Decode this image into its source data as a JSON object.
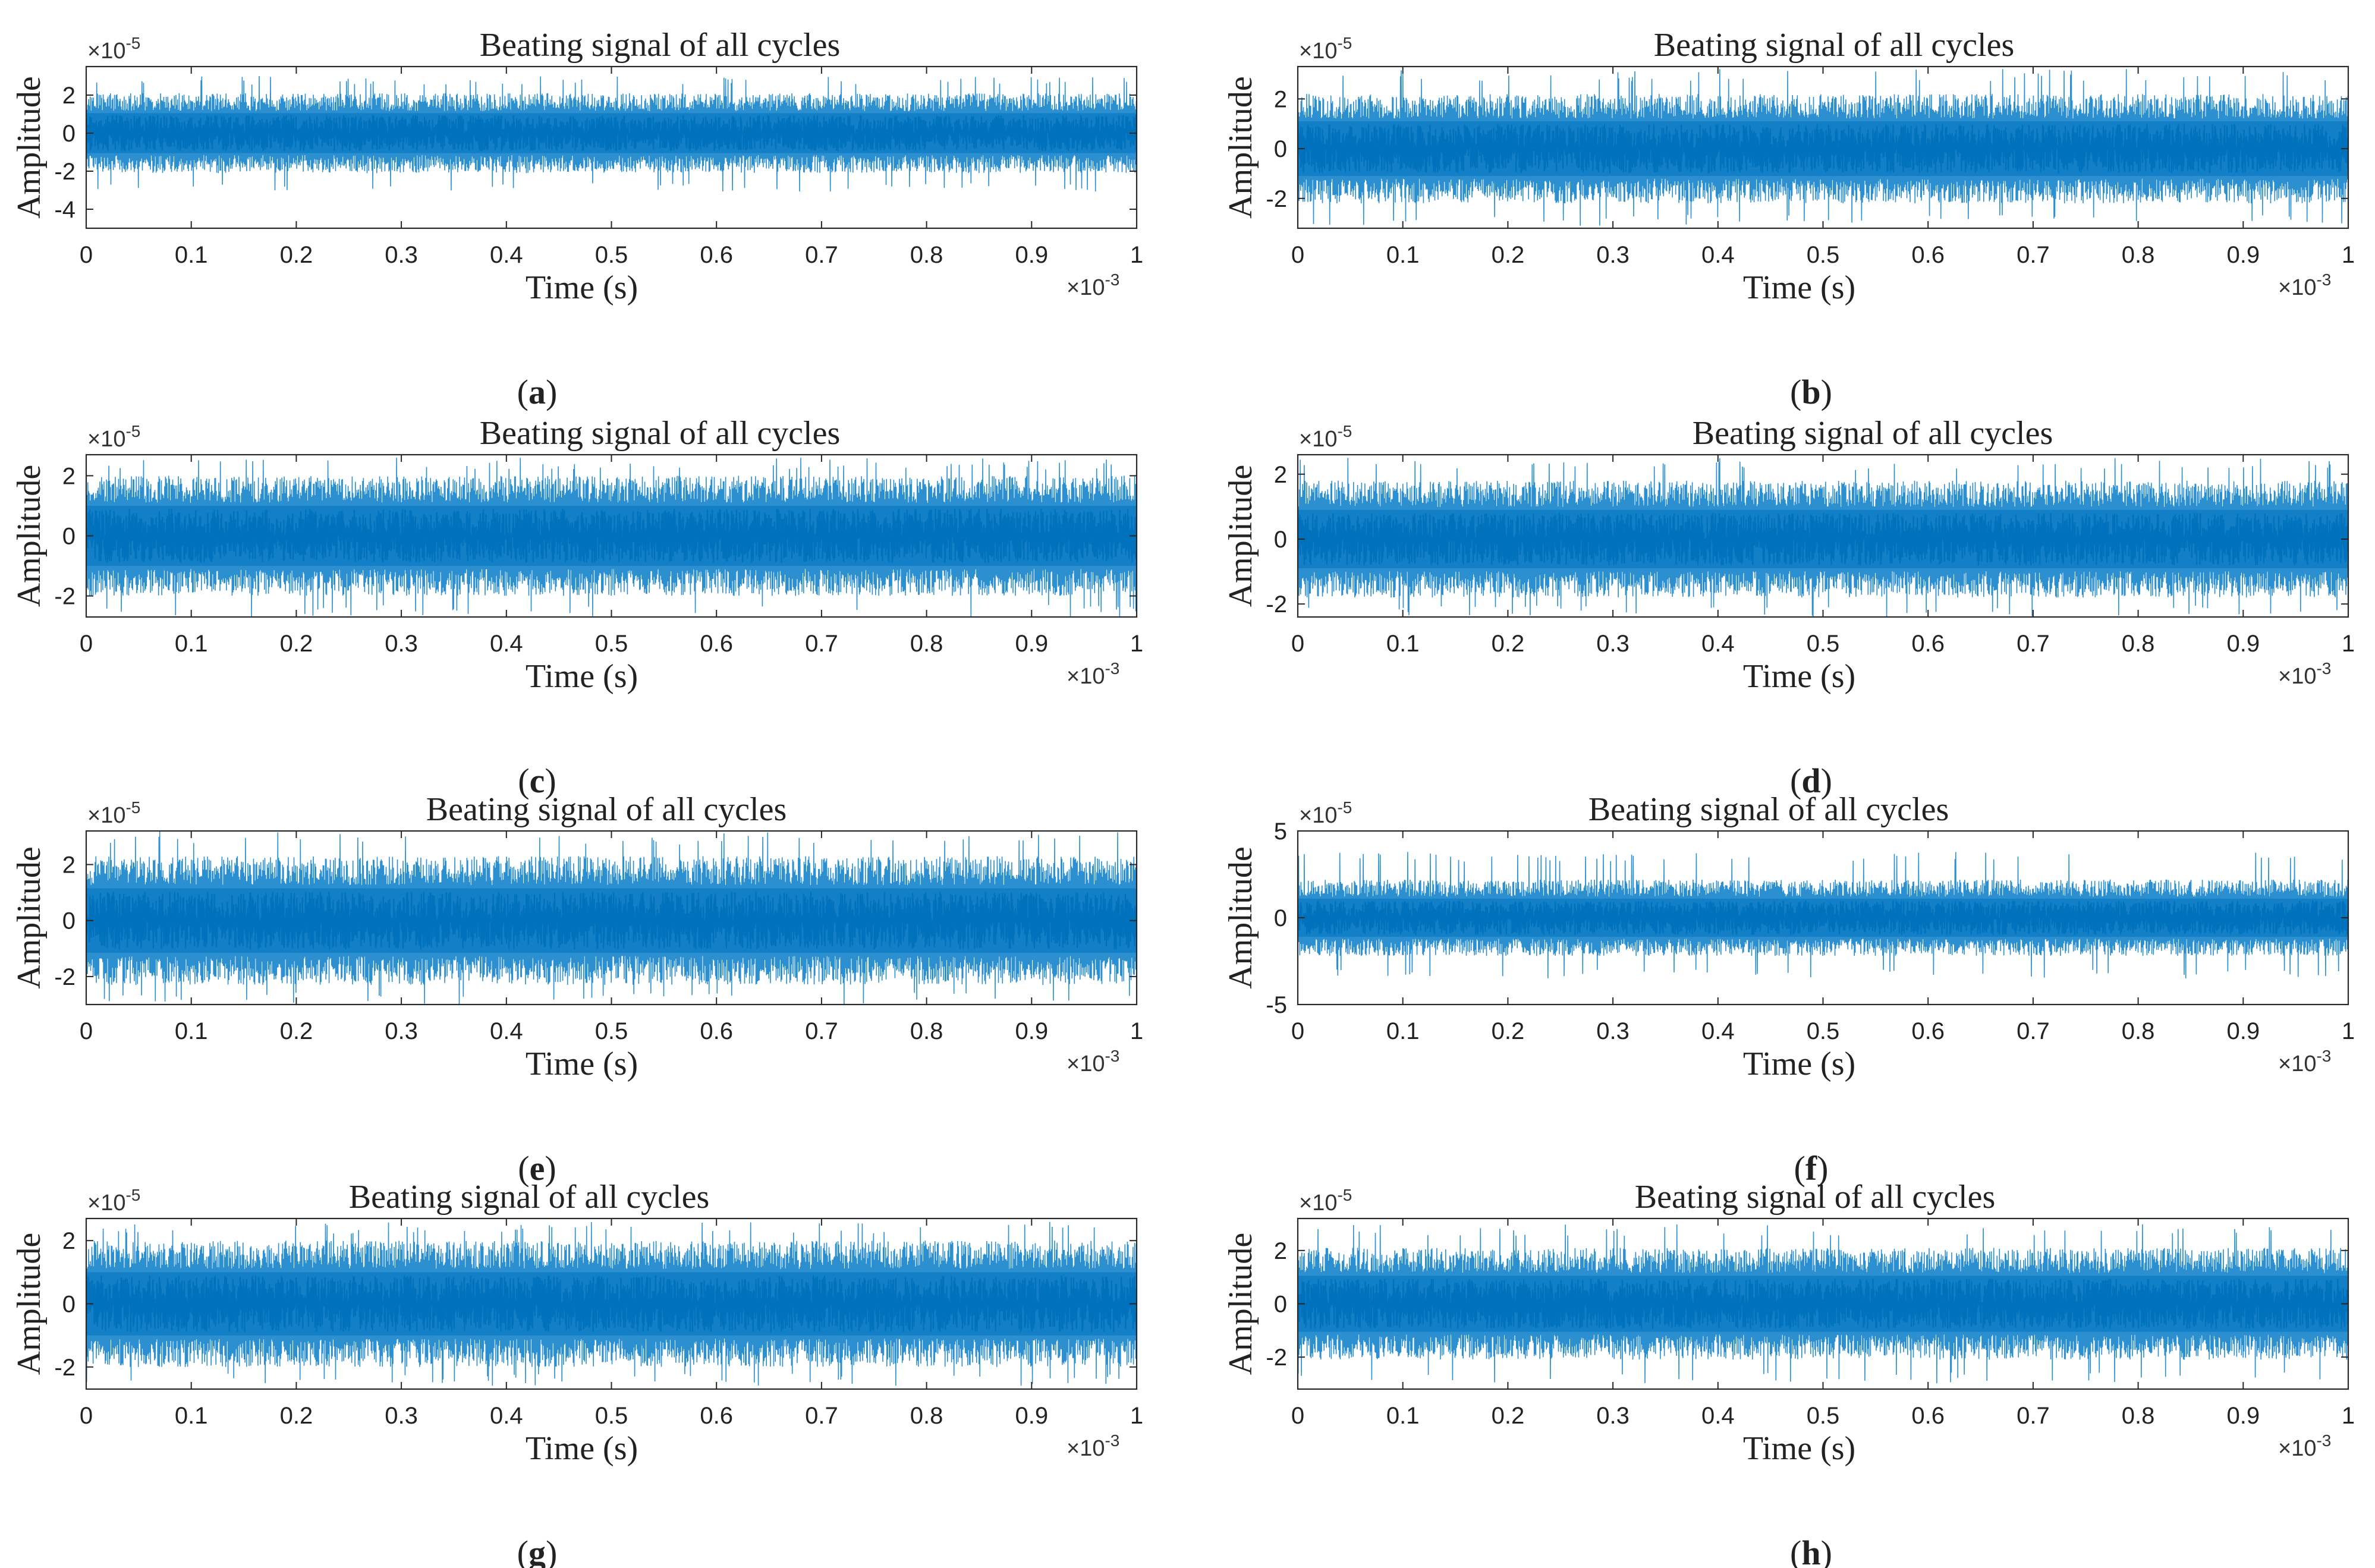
{
  "figure": {
    "layout": "4 rows x 2 columns",
    "x_tick_labels": [
      "0",
      "0.1",
      "0.2",
      "0.3",
      "0.4",
      "0.5",
      "0.6",
      "0.7",
      "0.8",
      "0.9",
      "1"
    ],
    "line_color": "#0072BD",
    "line_color_light": "#2b8fd0"
  },
  "chart_data": [
    {
      "id": "a",
      "panel_label": "a",
      "type": "line",
      "title": "Beating signal of all cycles",
      "xlabel": "Time (s)",
      "ylabel": "Amplitude",
      "x_exponent": "×10",
      "x_exponent_power": "-3",
      "y_exponent": "×10",
      "y_exponent_power": "-5",
      "xlim": [
        0,
        1
      ],
      "ylim": [
        -5,
        3.5
      ],
      "yticks": [
        -4,
        -2,
        0,
        2
      ],
      "ytick_labels": [
        "-4",
        "-2",
        "0",
        "2"
      ],
      "signal": {
        "envelope": 2.1,
        "peak_max": 3.0,
        "peak_min": -3.1,
        "seed": 11
      }
    },
    {
      "id": "b",
      "panel_label": "b",
      "type": "line",
      "title": "Beating signal of all cycles",
      "xlabel": "Time (s)",
      "ylabel": "Amplitude",
      "x_exponent": "×10",
      "x_exponent_power": "-3",
      "y_exponent": "×10",
      "y_exponent_power": "-5",
      "xlim": [
        0,
        1
      ],
      "ylim": [
        -3.2,
        3.3
      ],
      "yticks": [
        -2,
        0,
        2
      ],
      "ytick_labels": [
        "-2",
        "0",
        "2"
      ],
      "signal": {
        "envelope": 2.2,
        "peak_max": 3.2,
        "peak_min": -3.1,
        "seed": 23
      }
    },
    {
      "id": "c",
      "panel_label": "c",
      "type": "line",
      "title": "Beating signal of all cycles",
      "xlabel": "Time (s)",
      "ylabel": "Amplitude",
      "x_exponent": "×10",
      "x_exponent_power": "-3",
      "y_exponent": "×10",
      "y_exponent_power": "-5",
      "xlim": [
        0,
        1
      ],
      "ylim": [
        -2.7,
        2.7
      ],
      "yticks": [
        -2,
        0,
        2
      ],
      "ytick_labels": [
        "-2",
        "0",
        "2"
      ],
      "signal": {
        "envelope": 2.0,
        "peak_max": 2.6,
        "peak_min": -2.7,
        "seed": 37
      }
    },
    {
      "id": "d",
      "panel_label": "d",
      "type": "line",
      "title": "Beating signal of all cycles",
      "xlabel": "Time (s)",
      "ylabel": "Amplitude",
      "x_exponent": "×10",
      "x_exponent_power": "-3",
      "y_exponent": "×10",
      "y_exponent_power": "-5",
      "xlim": [
        0,
        1
      ],
      "ylim": [
        -2.4,
        2.6
      ],
      "yticks": [
        -2,
        0,
        2
      ],
      "ytick_labels": [
        "-2",
        "0",
        "2"
      ],
      "signal": {
        "envelope": 1.8,
        "peak_max": 2.5,
        "peak_min": -2.4,
        "seed": 41
      }
    },
    {
      "id": "e",
      "panel_label": "e",
      "type": "line",
      "title": "Beating signal of all cycles",
      "xlabel": "Time (s)",
      "ylabel": "Amplitude",
      "x_exponent": "×10",
      "x_exponent_power": "-3",
      "y_exponent": "×10",
      "y_exponent_power": "-5",
      "xlim": [
        0,
        1
      ],
      "ylim": [
        -3.0,
        3.2
      ],
      "yticks": [
        -2,
        0,
        2
      ],
      "ytick_labels": [
        "-2",
        "0",
        "2"
      ],
      "signal": {
        "envelope": 2.3,
        "peak_max": 3.2,
        "peak_min": -3.0,
        "seed": 53
      }
    },
    {
      "id": "f",
      "panel_label": "f",
      "type": "line",
      "title": "Beating signal of all cycles",
      "xlabel": "Time (s)",
      "ylabel": "Amplitude",
      "x_exponent": "×10",
      "x_exponent_power": "-3",
      "y_exponent": "×10",
      "y_exponent_power": "-5",
      "xlim": [
        0,
        1
      ],
      "ylim": [
        -5,
        5
      ],
      "yticks": [
        -5,
        0,
        5
      ],
      "ytick_labels": [
        "-5",
        "0",
        "5"
      ],
      "signal": {
        "envelope": 2.2,
        "peak_max": 3.8,
        "peak_min": -3.5,
        "seed": 67
      }
    },
    {
      "id": "g",
      "panel_label": "g",
      "type": "line",
      "title": "Beating signal of all cycles",
      "xlabel": "Time (s)",
      "ylabel": "Amplitude",
      "x_exponent": "×10",
      "x_exponent_power": "-3",
      "y_exponent": "×10",
      "y_exponent_power": "-5",
      "xlim": [
        0,
        1
      ],
      "ylim": [
        -2.7,
        2.7
      ],
      "yticks": [
        -2,
        0,
        2
      ],
      "ytick_labels": [
        "-2",
        "0",
        "2"
      ],
      "signal": {
        "envelope": 2.0,
        "peak_max": 2.6,
        "peak_min": -2.6,
        "seed": 79
      }
    },
    {
      "id": "h",
      "panel_label": "h",
      "type": "line",
      "title": "Beating signal of all cycles",
      "xlabel": "Time (s)",
      "ylabel": "Amplitude",
      "x_exponent": "×10",
      "x_exponent_power": "-3",
      "y_exponent": "×10",
      "y_exponent_power": "-5",
      "xlim": [
        0,
        1
      ],
      "ylim": [
        -3.2,
        3.2
      ],
      "yticks": [
        -2,
        0,
        2
      ],
      "ytick_labels": [
        "-2",
        "0",
        "2"
      ],
      "signal": {
        "envelope": 2.1,
        "peak_max": 3.0,
        "peak_min": -3.0,
        "seed": 97
      }
    }
  ]
}
